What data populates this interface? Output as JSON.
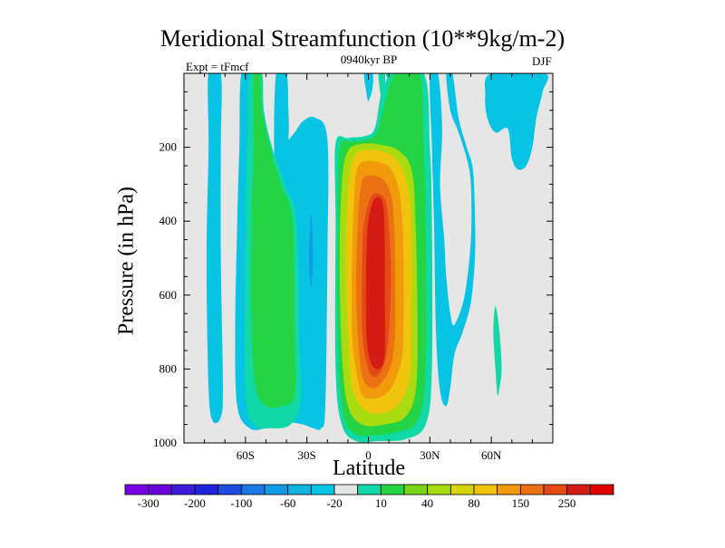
{
  "chart_data": {
    "type": "heatmap",
    "title": "Meridional Streamfunction (10**9kg/m-2)",
    "left_string": "Expt = tFmcf",
    "center_string": "0940kyr BP",
    "right_string": "DJF",
    "xlabel": "Latitude",
    "ylabel": "Pressure (in hPa)",
    "xlim": [
      -90,
      90
    ],
    "ylim": [
      1000,
      0
    ],
    "x_ticks": [
      {
        "value": -60,
        "label": "60S"
      },
      {
        "value": -30,
        "label": "30S"
      },
      {
        "value": 0,
        "label": "0"
      },
      {
        "value": 30,
        "label": "30N"
      },
      {
        "value": 60,
        "label": "60N"
      }
    ],
    "y_ticks": [
      {
        "value": 200,
        "label": "200"
      },
      {
        "value": 400,
        "label": "400"
      },
      {
        "value": 600,
        "label": "600"
      },
      {
        "value": 800,
        "label": "800"
      },
      {
        "value": 1000,
        "label": "1000"
      }
    ],
    "colorbar": {
      "colors": [
        "#7a00e6",
        "#6a00d8",
        "#3d1bd8",
        "#2222dd",
        "#1c4ce0",
        "#1c78e6",
        "#139ce6",
        "#12b4de",
        "#08c4e4",
        "#e6e6e6",
        "#10d8a6",
        "#24d444",
        "#78d414",
        "#a8dc10",
        "#d8d40c",
        "#f0c40c",
        "#f09a0c",
        "#ec7014",
        "#e44a14",
        "#d41c14",
        "#e00000"
      ],
      "labels": [
        {
          "after_box": 1,
          "text": "-300"
        },
        {
          "after_box": 3,
          "text": "-200"
        },
        {
          "after_box": 5,
          "text": "-100"
        },
        {
          "after_box": 7,
          "text": "-60"
        },
        {
          "after_box": 9,
          "text": "-20"
        },
        {
          "after_box": 11,
          "text": "10"
        },
        {
          "after_box": 13,
          "text": "40"
        },
        {
          "after_box": 15,
          "text": "80"
        },
        {
          "after_box": 17,
          "text": "150"
        },
        {
          "after_box": 19,
          "text": "250"
        }
      ]
    },
    "contour_regions": [
      {
        "name": "sh-far-south-negative-cell",
        "level": "-20",
        "color": "#08c4e4",
        "outline": [
          [
            -78,
            0
          ],
          [
            -72,
            0
          ],
          [
            -72,
            200
          ],
          [
            -72,
            500
          ],
          [
            -71,
            850
          ],
          [
            -72,
            930
          ],
          [
            -76,
            940
          ],
          [
            -78,
            850
          ],
          [
            -79,
            500
          ],
          [
            -78,
            200
          ]
        ]
      },
      {
        "name": "sh-broad-negative-band",
        "level": "-20",
        "color": "#08c4e4",
        "outline": [
          [
            -62,
            0
          ],
          [
            -56,
            0
          ],
          [
            -56,
            100
          ],
          [
            -55,
            200
          ],
          [
            -52,
            260
          ],
          [
            -42,
            200
          ],
          [
            -36,
            160
          ],
          [
            -32,
            130
          ],
          [
            -26,
            120
          ],
          [
            -20,
            180
          ],
          [
            -20,
            500
          ],
          [
            -21,
            900
          ],
          [
            -23,
            960
          ],
          [
            -27,
            960
          ],
          [
            -32,
            950
          ],
          [
            -40,
            945
          ],
          [
            -50,
            960
          ],
          [
            -58,
            960
          ],
          [
            -64,
            900
          ],
          [
            -65,
            700
          ],
          [
            -64,
            400
          ],
          [
            -63,
            200
          ]
        ]
      },
      {
        "name": "sh-upper-negative-patch",
        "level": "-20",
        "color": "#08c4e4",
        "outline": [
          [
            -45,
            0
          ],
          [
            -40,
            0
          ],
          [
            -39,
            100
          ],
          [
            -39,
            175
          ],
          [
            -41,
            250
          ],
          [
            -44,
            280
          ],
          [
            -46,
            200
          ]
        ]
      },
      {
        "name": "sh-lower-negative-core",
        "level": "-60",
        "color": "#139ce6",
        "outline": [
          [
            -28,
            380
          ],
          [
            -27,
            500
          ],
          [
            -28,
            580
          ],
          [
            -29,
            500
          ]
        ]
      },
      {
        "name": "sh-positive-green-band",
        "level": "10",
        "color": "#10d8a6",
        "outline": [
          [
            -58,
            0
          ],
          [
            -52,
            0
          ],
          [
            -51,
            100
          ],
          [
            -47,
            200
          ],
          [
            -40,
            310
          ],
          [
            -35,
            400
          ],
          [
            -34,
            700
          ],
          [
            -33,
            880
          ],
          [
            -38,
            950
          ],
          [
            -48,
            960
          ],
          [
            -56,
            950
          ],
          [
            -60,
            850
          ],
          [
            -60,
            400
          ],
          [
            -59,
            200
          ]
        ]
      },
      {
        "name": "sh-positive-green-core",
        "level": "40",
        "color": "#24d444",
        "outline": [
          [
            -56,
            0
          ],
          [
            -53,
            0
          ],
          [
            -52,
            100
          ],
          [
            -48,
            200
          ],
          [
            -42,
            310
          ],
          [
            -37,
            400
          ],
          [
            -36,
            700
          ],
          [
            -36,
            870
          ],
          [
            -42,
            900
          ],
          [
            -50,
            900
          ],
          [
            -55,
            850
          ],
          [
            -57,
            700
          ],
          [
            -57,
            400
          ],
          [
            -56,
            200
          ]
        ]
      },
      {
        "name": "nh-green-outer",
        "level": "10",
        "color": "#10d8a6",
        "outline": [
          [
            10,
            0
          ],
          [
            27,
            0
          ],
          [
            30,
            200
          ],
          [
            31,
            400
          ],
          [
            31,
            800
          ],
          [
            28,
            950
          ],
          [
            18,
            990
          ],
          [
            5,
            995
          ],
          [
            -6,
            995
          ],
          [
            -13,
            950
          ],
          [
            -16,
            800
          ],
          [
            -16,
            400
          ],
          [
            -16,
            190
          ],
          [
            -10,
            175
          ],
          [
            -2,
            170
          ],
          [
            3,
            150
          ],
          [
            6,
            60
          ],
          [
            9,
            15
          ]
        ]
      },
      {
        "name": "nh-green-inner",
        "level": "40",
        "color": "#24d444",
        "outline": [
          [
            14,
            0
          ],
          [
            25,
            0
          ],
          [
            27,
            200
          ],
          [
            28,
            400
          ],
          [
            28,
            800
          ],
          [
            24,
            940
          ],
          [
            14,
            970
          ],
          [
            2,
            980
          ],
          [
            -8,
            970
          ],
          [
            -13,
            900
          ],
          [
            -15,
            700
          ],
          [
            -15,
            400
          ],
          [
            -14,
            200
          ],
          [
            -8,
            185
          ],
          [
            -1,
            180
          ],
          [
            4,
            160
          ],
          [
            8,
            80
          ],
          [
            11,
            20
          ]
        ]
      },
      {
        "name": "nh-light-green",
        "level": "80",
        "color": "#a8dc10",
        "outline": [
          [
            -2,
            190
          ],
          [
            8,
            195
          ],
          [
            15,
            210
          ],
          [
            21,
            260
          ],
          [
            23,
            400
          ],
          [
            24,
            700
          ],
          [
            23,
            860
          ],
          [
            18,
            930
          ],
          [
            8,
            950
          ],
          [
            -3,
            950
          ],
          [
            -10,
            900
          ],
          [
            -13,
            750
          ],
          [
            -14,
            500
          ],
          [
            -13,
            300
          ],
          [
            -10,
            210
          ]
        ]
      },
      {
        "name": "nh-yellow",
        "level": "150",
        "color": "#f0c40c",
        "outline": [
          [
            -4,
            210
          ],
          [
            6,
            210
          ],
          [
            13,
            230
          ],
          [
            18,
            280
          ],
          [
            21,
            400
          ],
          [
            21,
            700
          ],
          [
            20,
            830
          ],
          [
            14,
            900
          ],
          [
            6,
            920
          ],
          [
            -2,
            910
          ],
          [
            -8,
            850
          ],
          [
            -10,
            700
          ],
          [
            -11,
            500
          ],
          [
            -10,
            320
          ],
          [
            -8,
            240
          ]
        ]
      },
      {
        "name": "nh-orange",
        "level": "200",
        "color": "#f09a0c",
        "outline": [
          [
            -3,
            240
          ],
          [
            5,
            240
          ],
          [
            11,
            260
          ],
          [
            15,
            320
          ],
          [
            17,
            450
          ],
          [
            17,
            720
          ],
          [
            15,
            800
          ],
          [
            10,
            860
          ],
          [
            3,
            880
          ],
          [
            -3,
            870
          ],
          [
            -6,
            800
          ],
          [
            -8,
            700
          ],
          [
            -8,
            500
          ],
          [
            -7,
            350
          ],
          [
            -6,
            270
          ]
        ]
      },
      {
        "name": "nh-dark-orange",
        "level": "250",
        "color": "#ec7014",
        "outline": [
          [
            -2,
            280
          ],
          [
            5,
            280
          ],
          [
            9,
            300
          ],
          [
            12,
            360
          ],
          [
            13,
            500
          ],
          [
            13,
            700
          ],
          [
            11,
            790
          ],
          [
            6,
            840
          ],
          [
            1,
            850
          ],
          [
            -3,
            820
          ],
          [
            -5,
            720
          ],
          [
            -6,
            560
          ],
          [
            -5,
            400
          ],
          [
            -4,
            320
          ]
        ]
      },
      {
        "name": "nh-red-orange",
        "level": "270",
        "color": "#e44a14",
        "outline": [
          [
            2,
            330
          ],
          [
            8,
            340
          ],
          [
            10,
            420
          ],
          [
            11,
            560
          ],
          [
            10,
            700
          ],
          [
            8,
            780
          ],
          [
            4,
            820
          ],
          [
            0,
            800
          ],
          [
            -3,
            700
          ],
          [
            -3,
            500
          ],
          [
            -2,
            400
          ]
        ]
      },
      {
        "name": "nh-red-core",
        "level": "300",
        "color": "#d41c14",
        "outline": [
          [
            3,
            340
          ],
          [
            7,
            350
          ],
          [
            8,
            450
          ],
          [
            8,
            600
          ],
          [
            8,
            760
          ],
          [
            5,
            800
          ],
          [
            1,
            780
          ],
          [
            -1,
            700
          ],
          [
            -1,
            500
          ],
          [
            0,
            400
          ]
        ]
      },
      {
        "name": "nh-top-small-cyan",
        "level": "-20",
        "color": "#08c4e4",
        "outline": [
          [
            -2,
            0
          ],
          [
            2,
            0
          ],
          [
            2,
            40
          ],
          [
            0,
            75
          ],
          [
            -1,
            50
          ]
        ]
      },
      {
        "name": "nh-top-small-green",
        "level": "10",
        "color": "#10d8a6",
        "outline": [
          [
            5,
            0
          ],
          [
            8,
            0
          ],
          [
            8,
            40
          ],
          [
            7,
            70
          ],
          [
            6,
            60
          ]
        ]
      },
      {
        "name": "nh-right-negative-band",
        "level": "-20",
        "color": "#08c4e4",
        "outline": [
          [
            30,
            0
          ],
          [
            34,
            0
          ],
          [
            36,
            150
          ],
          [
            35,
            300
          ],
          [
            37,
            450
          ],
          [
            38,
            550
          ],
          [
            40,
            650
          ],
          [
            42,
            680
          ],
          [
            47,
            600
          ],
          [
            50,
            450
          ],
          [
            50,
            300
          ],
          [
            48,
            230
          ],
          [
            44,
            160
          ],
          [
            40,
            100
          ],
          [
            38,
            0
          ],
          [
            41,
            0
          ],
          [
            44,
            120
          ],
          [
            48,
            200
          ],
          [
            51,
            260
          ],
          [
            52,
            380
          ],
          [
            52,
            500
          ],
          [
            50,
            620
          ],
          [
            46,
            700
          ],
          [
            42,
            760
          ],
          [
            40,
            850
          ],
          [
            38,
            900
          ],
          [
            35,
            860
          ],
          [
            33,
            700
          ],
          [
            32,
            400
          ],
          [
            31,
            200
          ]
        ]
      },
      {
        "name": "nh-far-right-negative",
        "level": "-20",
        "color": "#08c4e4",
        "outline": [
          [
            60,
            0
          ],
          [
            86,
            0
          ],
          [
            85,
            50
          ],
          [
            82,
            120
          ],
          [
            80,
            200
          ],
          [
            77,
            250
          ],
          [
            73,
            260
          ],
          [
            70,
            230
          ],
          [
            68,
            150
          ],
          [
            62,
            160
          ],
          [
            58,
            120
          ],
          [
            57,
            60
          ]
        ]
      },
      {
        "name": "nh-deep-green-spot",
        "level": "10",
        "color": "#10d8a6",
        "outline": [
          [
            62,
            630
          ],
          [
            64,
            700
          ],
          [
            65,
            800
          ],
          [
            64,
            850
          ],
          [
            63,
            870
          ],
          [
            62,
            800
          ],
          [
            61,
            700
          ]
        ]
      }
    ]
  }
}
